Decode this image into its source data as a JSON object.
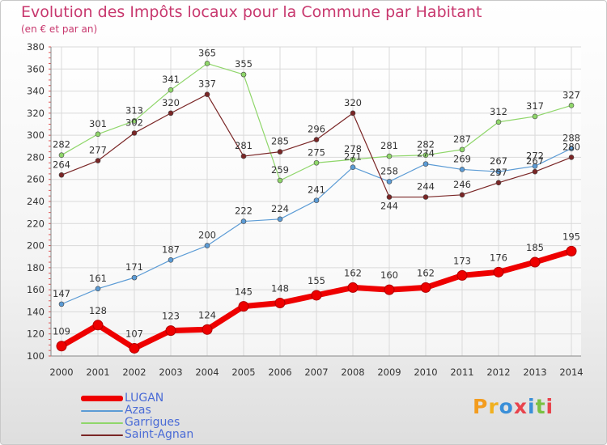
{
  "header": {
    "title": "Evolution des Impôts locaux pour la Commune par Habitant",
    "subtitle": "(en € et par an)"
  },
  "logo": {
    "text": "Proxiti",
    "letters": [
      "P",
      "r",
      "o",
      "x",
      "i",
      "t",
      "i"
    ]
  },
  "colors": {
    "title": "#c8386e",
    "legend_text": "#4a6bd6",
    "logo": [
      "#f39c1e",
      "#f0b020",
      "#3a8fd8",
      "#e8434c",
      "#3a8fd8",
      "#7ac142",
      "#e8434c"
    ]
  },
  "chart_data": {
    "type": "line",
    "x": [
      2000,
      2001,
      2002,
      2003,
      2004,
      2005,
      2006,
      2007,
      2008,
      2009,
      2010,
      2011,
      2012,
      2013,
      2014
    ],
    "ylim": [
      100,
      380
    ],
    "yticks": [
      100,
      120,
      140,
      160,
      180,
      200,
      220,
      240,
      260,
      280,
      300,
      320,
      340,
      360,
      380
    ],
    "grid": true,
    "legend_position": "bottom-left",
    "series": [
      {
        "name": "LUGAN",
        "color": "#ee0000",
        "width": 7,
        "marker_r": 6,
        "label_mode": "above",
        "values": [
          109,
          128,
          107,
          123,
          124,
          145,
          148,
          155,
          162,
          160,
          162,
          173,
          176,
          185,
          195
        ]
      },
      {
        "name": "Azas",
        "color": "#5b9bd5",
        "width": 1.2,
        "marker_r": 3,
        "label_mode": "above",
        "values": [
          147,
          161,
          171,
          187,
          200,
          222,
          224,
          241,
          271,
          258,
          274,
          269,
          267,
          272,
          288
        ]
      },
      {
        "name": "Garrigues",
        "color": "#8fd66a",
        "width": 1.2,
        "marker_r": 3,
        "label_mode": "above",
        "values": [
          282,
          301,
          313,
          341,
          365,
          355,
          259,
          275,
          278,
          281,
          282,
          287,
          312,
          317,
          327
        ]
      },
      {
        "name": "Saint-Agnan",
        "color": "#7a2626",
        "width": 1.2,
        "marker_r": 3,
        "label_mode": "mixed",
        "values": [
          264,
          277,
          302,
          320,
          337,
          281,
          285,
          296,
          320,
          244,
          244,
          246,
          257,
          267,
          280
        ]
      }
    ]
  }
}
